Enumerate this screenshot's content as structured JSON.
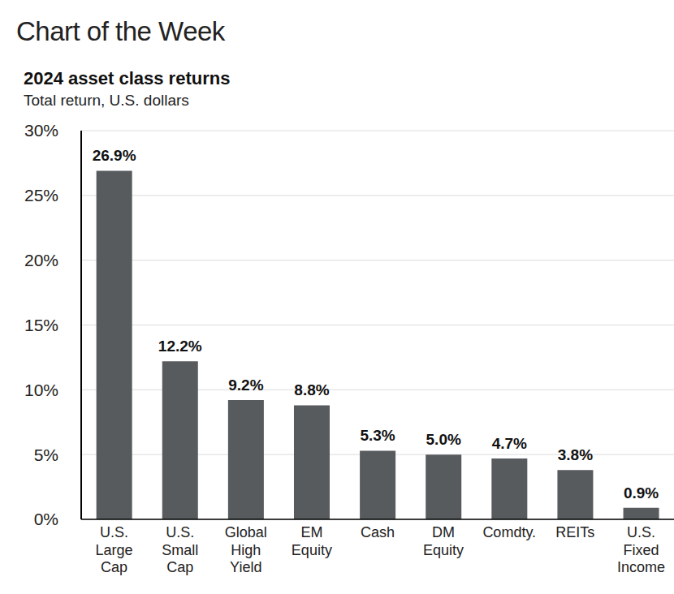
{
  "chart_data": {
    "type": "bar",
    "header": "Chart of the Week",
    "title": "2024 asset class returns",
    "subtitle": "Total return, U.S. dollars",
    "categories": [
      "U.S. Large Cap",
      "U.S. Small Cap",
      "Global High Yield",
      "EM Equity",
      "Cash",
      "DM Equity",
      "Comdty.",
      "REITs",
      "U.S. Fixed Income"
    ],
    "values": [
      26.9,
      12.2,
      9.2,
      8.8,
      5.3,
      5.0,
      4.7,
      3.8,
      0.9
    ],
    "value_labels": [
      "26.9%",
      "12.2%",
      "9.2%",
      "8.8%",
      "5.3%",
      "5.0%",
      "4.7%",
      "3.8%",
      "0.9%"
    ],
    "color": "#575b5e",
    "ylim": [
      0,
      30
    ],
    "yticks": [
      {
        "value": 0,
        "label": "0%"
      },
      {
        "value": 5,
        "label": "5%"
      },
      {
        "value": 10,
        "label": "10%"
      },
      {
        "value": 15,
        "label": "15%"
      },
      {
        "value": 20,
        "label": "20%"
      },
      {
        "value": 25,
        "label": "25%"
      },
      {
        "value": 30,
        "label": "30%"
      }
    ],
    "grid": true,
    "data_labels": true
  }
}
